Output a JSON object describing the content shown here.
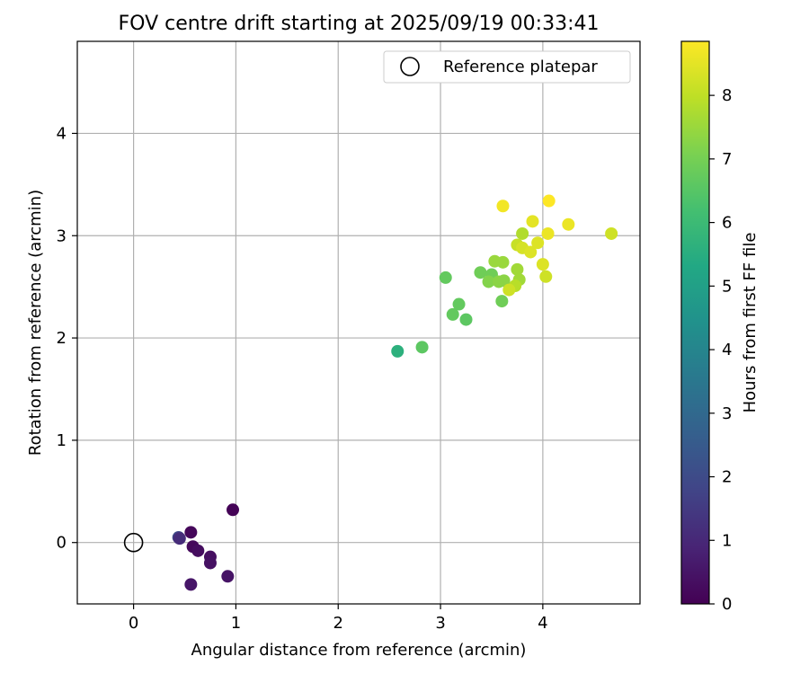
{
  "chart_data": {
    "type": "scatter",
    "title": "FOV centre drift starting at 2025/09/19 00:33:41",
    "xlabel": "Angular distance from reference (arcmin)",
    "ylabel": "Rotation from reference (arcmin)",
    "xlim": [
      -0.55,
      4.95
    ],
    "ylim": [
      -0.6,
      4.9
    ],
    "xticks": [
      0,
      1,
      2,
      3,
      4
    ],
    "yticks": [
      0,
      1,
      2,
      3,
      4
    ],
    "grid": true,
    "legend": {
      "position": "top-right",
      "entries": [
        "Reference platepar"
      ]
    },
    "reference_point": {
      "x": 0,
      "y": 0,
      "label": "Reference platepar"
    },
    "colorbar": {
      "label": "Hours from first FF file",
      "min": 0,
      "max": 8.85,
      "ticks": [
        0,
        1,
        2,
        3,
        4,
        5,
        6,
        7,
        8
      ],
      "colormap": "viridis"
    },
    "points": [
      {
        "x": 0.97,
        "y": 0.32,
        "h": 0.05
      },
      {
        "x": 0.56,
        "y": 0.1,
        "h": 0.15
      },
      {
        "x": 0.44,
        "y": 0.05,
        "h": 1.9
      },
      {
        "x": 0.45,
        "y": 0.04,
        "h": 1.1
      },
      {
        "x": 0.58,
        "y": -0.04,
        "h": 0.2
      },
      {
        "x": 0.63,
        "y": -0.08,
        "h": 0.3
      },
      {
        "x": 0.75,
        "y": -0.14,
        "h": 0.35
      },
      {
        "x": 0.75,
        "y": -0.2,
        "h": 0.4
      },
      {
        "x": 0.92,
        "y": -0.33,
        "h": 0.45
      },
      {
        "x": 0.56,
        "y": -0.41,
        "h": 0.5
      },
      {
        "x": 2.58,
        "y": 1.87,
        "h": 5.6
      },
      {
        "x": 2.82,
        "y": 1.91,
        "h": 6.6
      },
      {
        "x": 3.25,
        "y": 2.18,
        "h": 6.6
      },
      {
        "x": 3.12,
        "y": 2.23,
        "h": 6.7
      },
      {
        "x": 3.18,
        "y": 2.33,
        "h": 6.7
      },
      {
        "x": 3.05,
        "y": 2.59,
        "h": 6.7
      },
      {
        "x": 3.6,
        "y": 2.36,
        "h": 6.9
      },
      {
        "x": 3.39,
        "y": 2.64,
        "h": 6.9
      },
      {
        "x": 3.5,
        "y": 2.62,
        "h": 6.9
      },
      {
        "x": 3.47,
        "y": 2.55,
        "h": 7.2
      },
      {
        "x": 3.57,
        "y": 2.55,
        "h": 7.3
      },
      {
        "x": 3.62,
        "y": 2.56,
        "h": 7.3
      },
      {
        "x": 3.53,
        "y": 2.75,
        "h": 7.5
      },
      {
        "x": 3.61,
        "y": 2.74,
        "h": 7.5
      },
      {
        "x": 3.75,
        "y": 2.67,
        "h": 7.6
      },
      {
        "x": 3.77,
        "y": 2.57,
        "h": 7.6
      },
      {
        "x": 3.73,
        "y": 2.51,
        "h": 7.9
      },
      {
        "x": 3.67,
        "y": 2.47,
        "h": 8.2
      },
      {
        "x": 3.8,
        "y": 3.02,
        "h": 7.8
      },
      {
        "x": 3.75,
        "y": 2.91,
        "h": 8.1
      },
      {
        "x": 3.8,
        "y": 2.88,
        "h": 8.3
      },
      {
        "x": 3.88,
        "y": 2.84,
        "h": 8.4
      },
      {
        "x": 3.95,
        "y": 2.93,
        "h": 8.4
      },
      {
        "x": 4.0,
        "y": 2.72,
        "h": 8.4
      },
      {
        "x": 4.03,
        "y": 2.6,
        "h": 8.2
      },
      {
        "x": 4.67,
        "y": 3.02,
        "h": 8.2
      },
      {
        "x": 3.9,
        "y": 3.14,
        "h": 8.5
      },
      {
        "x": 4.05,
        "y": 3.02,
        "h": 8.6
      },
      {
        "x": 4.25,
        "y": 3.11,
        "h": 8.6
      },
      {
        "x": 3.61,
        "y": 3.29,
        "h": 8.7
      },
      {
        "x": 4.06,
        "y": 3.34,
        "h": 8.85
      }
    ]
  }
}
